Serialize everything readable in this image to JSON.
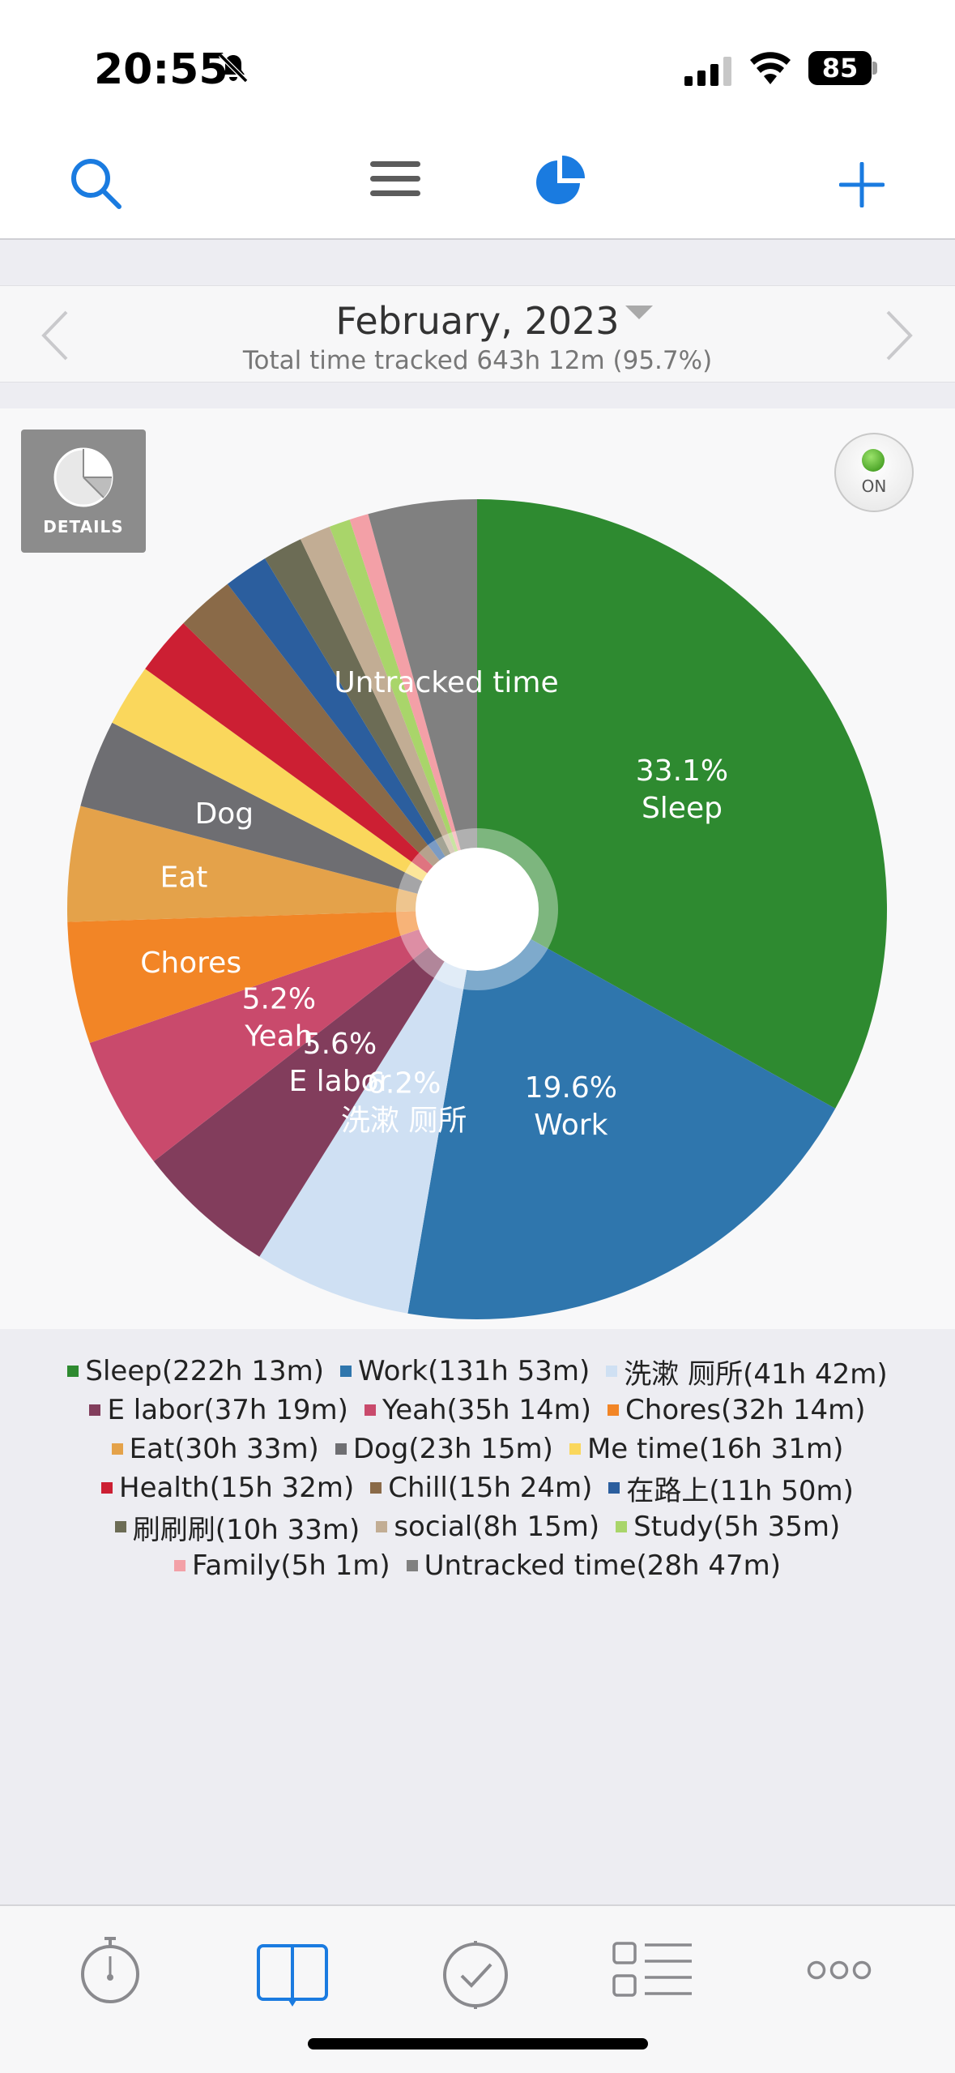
{
  "status_bar": {
    "time": "20:55",
    "battery": "85"
  },
  "toolbar": {
    "icons": [
      "search-icon",
      "menu-icon",
      "pie-chart-icon",
      "add-icon"
    ],
    "accent": "#1a7be0"
  },
  "header": {
    "title": "February, 2023",
    "subtitle": "Total time tracked 643h 12m (95.7%)"
  },
  "chart_panel": {
    "details_label": "DETAILS",
    "toggle_label": "ON"
  },
  "chart_data": {
    "type": "pie",
    "slices": [
      {
        "name": "Sleep",
        "duration": "222h 13m",
        "value": 222.22,
        "color": "#2e8a30",
        "label_pct": "33.1%",
        "label_name": "Sleep"
      },
      {
        "name": "Work",
        "duration": "131h 53m",
        "value": 131.88,
        "color": "#2f76ad",
        "label_pct": "19.6%",
        "label_name": "Work"
      },
      {
        "name": "洗漱 厕所",
        "duration": "41h 42m",
        "value": 41.7,
        "color": "#cfe0f3",
        "label_pct": "6.2%",
        "label_name": "洗漱 厕所"
      },
      {
        "name": "E labor",
        "duration": "37h 19m",
        "value": 37.32,
        "color": "#823d5c",
        "label_pct": "5.6%",
        "label_name": "E labor"
      },
      {
        "name": "Yeah",
        "duration": "35h 14m",
        "value": 35.23,
        "color": "#c94a6c",
        "label_pct": "5.2%",
        "label_name": "Yeah"
      },
      {
        "name": "Chores",
        "duration": "32h 14m",
        "value": 32.23,
        "color": "#f28526",
        "label_pct": "",
        "label_name": "Chores"
      },
      {
        "name": "Eat",
        "duration": "30h 33m",
        "value": 30.55,
        "color": "#e4a24a",
        "label_pct": "",
        "label_name": "Eat"
      },
      {
        "name": "Dog",
        "duration": "23h 15m",
        "value": 23.25,
        "color": "#6e6e72",
        "label_pct": "",
        "label_name": "Dog"
      },
      {
        "name": "Me time",
        "duration": "16h 31m",
        "value": 16.52,
        "color": "#fad75c",
        "label_pct": "",
        "label_name": ""
      },
      {
        "name": "Health",
        "duration": "15h 32m",
        "value": 15.53,
        "color": "#cc1f33",
        "label_pct": "",
        "label_name": ""
      },
      {
        "name": "Chill",
        "duration": "15h 24m",
        "value": 15.4,
        "color": "#8a6a48",
        "label_pct": "",
        "label_name": ""
      },
      {
        "name": "在路上",
        "duration": "11h 50m",
        "value": 11.83,
        "color": "#2b5e9e",
        "label_pct": "",
        "label_name": ""
      },
      {
        "name": "刷刷刷",
        "duration": "10h 33m",
        "value": 10.55,
        "color": "#6c6c55",
        "label_pct": "",
        "label_name": ""
      },
      {
        "name": "social",
        "duration": "8h 15m",
        "value": 8.25,
        "color": "#c2ad94",
        "label_pct": "",
        "label_name": ""
      },
      {
        "name": "Study",
        "duration": "5h 35m",
        "value": 5.58,
        "color": "#a9d56a",
        "label_pct": "",
        "label_name": ""
      },
      {
        "name": "Family",
        "duration": "5h 1m",
        "value": 5.02,
        "color": "#f3a0a7",
        "label_pct": "",
        "label_name": ""
      },
      {
        "name": "Untracked time",
        "duration": "28h 47m",
        "value": 28.78,
        "color": "#808080",
        "label_pct": "",
        "label_name": "Untracked time"
      }
    ]
  },
  "legend_rows": [
    [
      0,
      1,
      2
    ],
    [
      3,
      4,
      5
    ],
    [
      6,
      7,
      8
    ],
    [
      9,
      10,
      11
    ],
    [
      12,
      13,
      14
    ],
    [
      15,
      16
    ]
  ],
  "tab_bar": {
    "icons": [
      "stopwatch-icon",
      "book-icon",
      "checkmark-clock-icon",
      "list-icon",
      "more-icon"
    ],
    "active": 1
  }
}
